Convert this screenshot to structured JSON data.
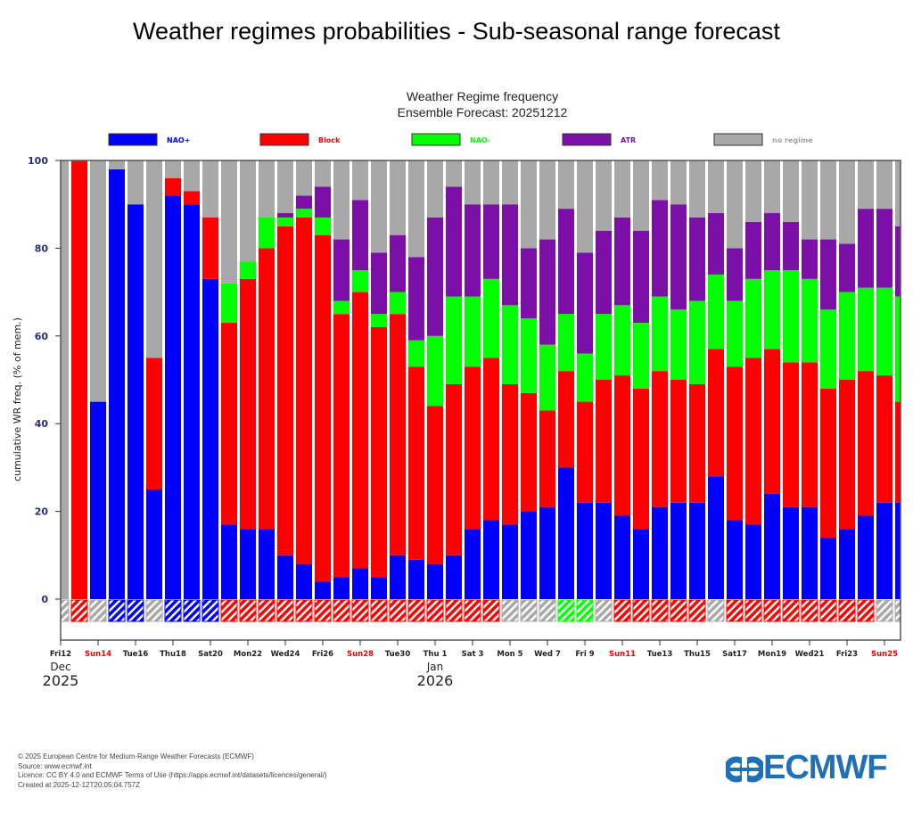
{
  "page": {
    "title": "Weather regimes probabilities - Sub-seasonal range forecast"
  },
  "footer": {
    "lines": [
      "© 2025 European Centre for Medium-Range Weather Forecasts (ECMWF)",
      "Source: www.ecmwf.int",
      "Licence: CC BY 4.0 and ECMWF Terms of Use (https://apps.ecmwf.int/datasets/licences/general/)",
      "Created at 2025-12-12T20:05:04.757Z"
    ],
    "logo_text": "ECMWF",
    "logo_color": "#1f70b6"
  },
  "chart_data": {
    "type": "bar",
    "stacked": true,
    "title": "Weather Regime frequency",
    "subtitle": "Ensemble Forecast: 20251212",
    "xlabel": "",
    "ylabel": "cumulative WR freq. (% of mem.)",
    "ylim": [
      -10,
      100
    ],
    "yticks": [
      0,
      20,
      40,
      60,
      80,
      100
    ],
    "legend_position": "top",
    "legend": [
      {
        "name": "NAO+",
        "color": "#0000ff"
      },
      {
        "name": "Block",
        "color": "#ff0000"
      },
      {
        "name": "NAO-",
        "color": "#00ff00"
      },
      {
        "name": "ATR",
        "color": "#7b0fa8"
      },
      {
        "name": "no regime",
        "color": "#a8a8a8"
      }
    ],
    "xtick_labels": [
      {
        "day": 0,
        "label": "Fri12",
        "weekend": false
      },
      {
        "day": 2,
        "label": "Sun14",
        "weekend": true
      },
      {
        "day": 4,
        "label": "Tue16",
        "weekend": false
      },
      {
        "day": 6,
        "label": "Thu18",
        "weekend": false
      },
      {
        "day": 8,
        "label": "Sat20",
        "weekend": false
      },
      {
        "day": 10,
        "label": "Mon22",
        "weekend": false
      },
      {
        "day": 12,
        "label": "Wed24",
        "weekend": false
      },
      {
        "day": 14,
        "label": "Fri26",
        "weekend": false
      },
      {
        "day": 16,
        "label": "Sun28",
        "weekend": true
      },
      {
        "day": 18,
        "label": "Tue30",
        "weekend": false
      },
      {
        "day": 20,
        "label": "Thu 1",
        "weekend": false
      },
      {
        "day": 22,
        "label": "Sat 3",
        "weekend": false
      },
      {
        "day": 24,
        "label": "Mon 5",
        "weekend": false
      },
      {
        "day": 26,
        "label": "Wed 7",
        "weekend": false
      },
      {
        "day": 28,
        "label": "Fri 9",
        "weekend": false
      },
      {
        "day": 30,
        "label": "Sun11",
        "weekend": true
      },
      {
        "day": 32,
        "label": "Tue13",
        "weekend": false
      },
      {
        "day": 34,
        "label": "Thu15",
        "weekend": false
      },
      {
        "day": 36,
        "label": "Sat17",
        "weekend": false
      },
      {
        "day": 38,
        "label": "Mon19",
        "weekend": false
      },
      {
        "day": 40,
        "label": "Wed21",
        "weekend": false
      },
      {
        "day": 42,
        "label": "Fri23",
        "weekend": false
      },
      {
        "day": 44,
        "label": "Sun25",
        "weekend": true
      }
    ],
    "month_labels": [
      {
        "day": 0,
        "month": "Dec",
        "year": "2025"
      },
      {
        "day": 20,
        "month": "Jan",
        "year": "2026"
      }
    ],
    "categories": [
      "2025-12-12",
      "2025-12-13",
      "2025-12-14",
      "2025-12-15",
      "2025-12-16",
      "2025-12-17",
      "2025-12-18",
      "2025-12-19",
      "2025-12-20",
      "2025-12-21",
      "2025-12-22",
      "2025-12-23",
      "2025-12-24",
      "2025-12-25",
      "2025-12-26",
      "2025-12-27",
      "2025-12-28",
      "2025-12-29",
      "2025-12-30",
      "2025-12-31",
      "2026-01-01",
      "2026-01-02",
      "2026-01-03",
      "2026-01-04",
      "2026-01-05",
      "2026-01-06",
      "2026-01-07",
      "2026-01-08",
      "2026-01-09",
      "2026-01-10",
      "2026-01-11",
      "2026-01-12",
      "2026-01-13",
      "2026-01-14",
      "2026-01-15",
      "2026-01-16",
      "2026-01-17",
      "2026-01-18",
      "2026-01-19",
      "2026-01-20",
      "2026-01-21",
      "2026-01-22",
      "2026-01-23",
      "2026-01-24",
      "2026-01-25",
      "2026-01-26"
    ],
    "series": [
      {
        "name": "NAO+",
        "cumulative_top": [
          0,
          0,
          45,
          98,
          90,
          25,
          92,
          90,
          73,
          17,
          16,
          16,
          10,
          8,
          4,
          5,
          7,
          5,
          10,
          9,
          8,
          10,
          16,
          18,
          17,
          20,
          21,
          30,
          22,
          22,
          19,
          16,
          21,
          22,
          22,
          28,
          18,
          17,
          24,
          21,
          21,
          14,
          16,
          19,
          22,
          22
        ]
      },
      {
        "name": "Block",
        "cumulative_top": [
          0,
          100,
          45,
          98,
          90,
          55,
          96,
          93,
          87,
          63,
          73,
          80,
          85,
          87,
          83,
          65,
          70,
          62,
          65,
          53,
          44,
          49,
          53,
          55,
          49,
          47,
          43,
          52,
          45,
          50,
          51,
          48,
          52,
          50,
          49,
          57,
          53,
          55,
          57,
          54,
          54,
          48,
          50,
          52,
          51,
          45
        ]
      },
      {
        "name": "NAO-",
        "cumulative_top": [
          0,
          100,
          45,
          98,
          90,
          55,
          96,
          93,
          87,
          72,
          77,
          87,
          87,
          89,
          87,
          68,
          75,
          65,
          70,
          59,
          60,
          69,
          69,
          73,
          67,
          64,
          58,
          65,
          56,
          65,
          67,
          63,
          69,
          66,
          68,
          74,
          68,
          73,
          75,
          75,
          73,
          66,
          70,
          71,
          71,
          69
        ]
      },
      {
        "name": "ATR",
        "cumulative_top": [
          0,
          100,
          45,
          98,
          90,
          55,
          96,
          93,
          87,
          72,
          77,
          87,
          88,
          92,
          94,
          82,
          91,
          79,
          83,
          78,
          87,
          94,
          90,
          90,
          90,
          80,
          82,
          89,
          79,
          84,
          87,
          84,
          91,
          90,
          87,
          88,
          80,
          86,
          88,
          86,
          82,
          82,
          81,
          89,
          89,
          85
        ]
      },
      {
        "name": "no regime",
        "cumulative_top": [
          100,
          100,
          100,
          100,
          100,
          100,
          100,
          100,
          100,
          100,
          100,
          100,
          100,
          100,
          100,
          100,
          100,
          100,
          100,
          100,
          100,
          100,
          100,
          100,
          100,
          100,
          100,
          100,
          100,
          100,
          100,
          100,
          100,
          100,
          100,
          100,
          100,
          100,
          100,
          100,
          100,
          100,
          100,
          100,
          100,
          100
        ]
      }
    ],
    "dominant_regime": [
      "no regime",
      "Block",
      "no regime",
      "NAO+",
      "NAO+",
      "no regime",
      "NAO+",
      "NAO+",
      "NAO+",
      "Block",
      "Block",
      "Block",
      "Block",
      "Block",
      "Block",
      "Block",
      "Block",
      "Block",
      "Block",
      "Block",
      "Block",
      "Block",
      "Block",
      "Block",
      "no regime",
      "no regime",
      "no regime",
      "NAO-",
      "NAO-",
      "no regime",
      "Block",
      "Block",
      "Block",
      "Block",
      "Block",
      "no regime",
      "Block",
      "Block",
      "Block",
      "Block",
      "Block",
      "Block",
      "Block",
      "Block",
      "no regime",
      "no regime"
    ]
  }
}
